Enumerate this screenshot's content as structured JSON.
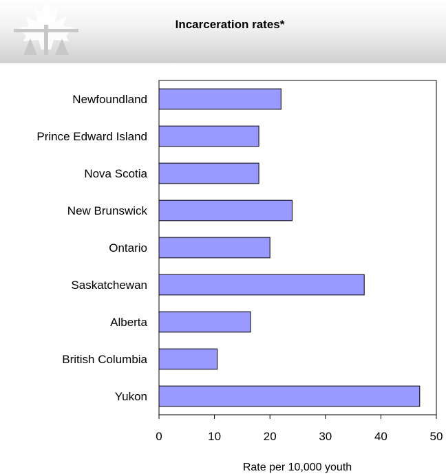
{
  "header": {
    "title": "Incarceration rates*"
  },
  "chart_data": {
    "type": "bar",
    "orientation": "horizontal",
    "title": "Incarceration rates*",
    "categories": [
      "Newfoundland",
      "Prince Edward Island",
      "Nova Scotia",
      "New Brunswick",
      "Ontario",
      "Saskatchewan",
      "Alberta",
      "British Columbia",
      "Yukon"
    ],
    "values": [
      22,
      18,
      18,
      24,
      20,
      37,
      16.5,
      10.5,
      47
    ],
    "xlabel": "Rate per 10,000 youth",
    "ylabel": "",
    "xlim": [
      0,
      50
    ],
    "xticks": [
      0,
      10,
      20,
      30,
      40,
      50
    ],
    "grid": false,
    "colors": {
      "bar_fill": "#9999ff",
      "bar_stroke": "#000000"
    }
  }
}
